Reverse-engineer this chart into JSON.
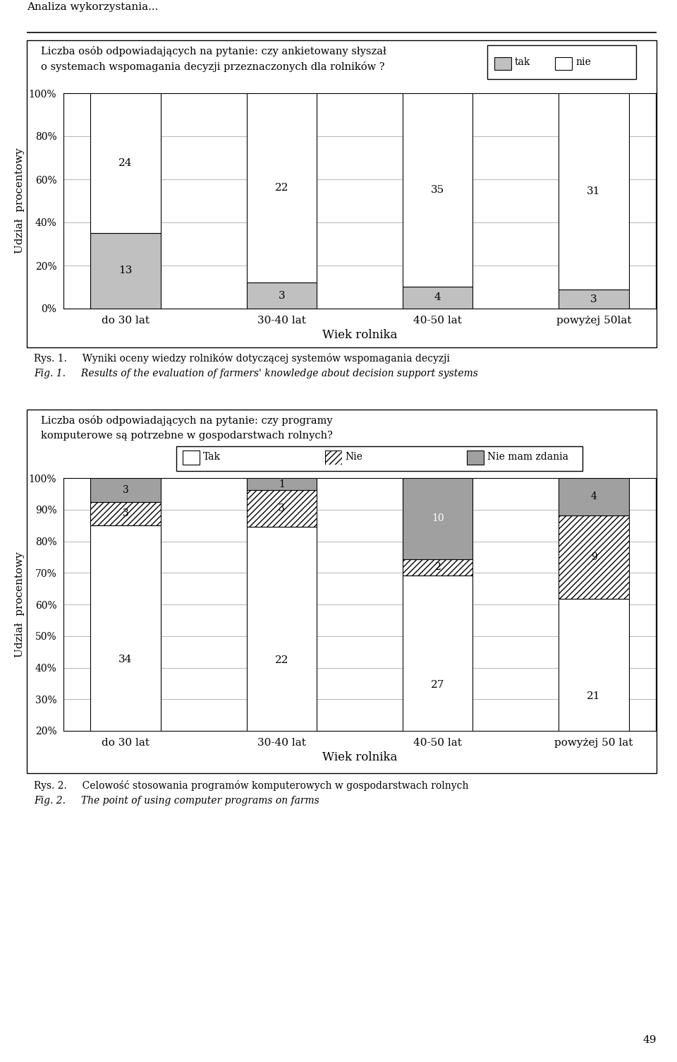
{
  "page_header": "Analiza wykorzystania...",
  "chart1": {
    "title_line1": "Liczba osób odpowiadających na pytanie: czy ankietowany słyszał",
    "title_line2": "o systemach wspomagania decyzji przeznaczonych dla rolników ?",
    "categories": [
      "do 30 lat",
      "30-40 lat",
      "40-50 lat",
      "powyżej 50lat"
    ],
    "tak": [
      13,
      3,
      4,
      3
    ],
    "nie": [
      24,
      22,
      35,
      31
    ],
    "ylabel": "Udział  procentowy",
    "xlabel": "Wiek rolnika",
    "legend_tak": "tak",
    "legend_nie": "nie",
    "color_tak": "#c0c0c0",
    "color_nie": "#ffffff",
    "yticks": [
      0,
      20,
      40,
      60,
      80,
      100
    ],
    "ytick_labels": [
      "0%",
      "20%",
      "40%",
      "60%",
      "80%",
      "100%"
    ]
  },
  "caption1_pl": "Rys. 1.     Wyniki oceny wiedzy rolników dotyczącej systemów wspomagania decyzji",
  "caption1_en": "Fig. 1.     Results of the evaluation of farmers' knowledge about decision support systems",
  "chart2": {
    "title_line1": "Liczba osób odpowiadających na pytanie: czy programy",
    "title_line2": "komputerowe są potrzebne w gospodarstwach rolnych?",
    "categories": [
      "do 30 lat",
      "30-40 lat",
      "40-50 lat",
      "powyżej 50 lat"
    ],
    "tak": [
      34,
      22,
      27,
      21
    ],
    "nie": [
      3,
      3,
      2,
      9
    ],
    "nie_mam": [
      3,
      1,
      10,
      4
    ],
    "ylabel": "Udział  procentowy",
    "xlabel": "Wiek rolnika",
    "legend_tak": "Tak",
    "legend_nie": "Nie",
    "legend_nie_mam": "Nie mam zdania",
    "color_tak": "#ffffff",
    "color_nie_mam": "#a0a0a0",
    "yticks": [
      20,
      30,
      40,
      50,
      60,
      70,
      80,
      90,
      100
    ],
    "ytick_labels": [
      "20%",
      "30%",
      "40%",
      "50%",
      "60%",
      "70%",
      "80%",
      "90%",
      "100%"
    ]
  },
  "caption2_pl": "Rys. 2.     Celowość stosowania programów komputerowych w gospodarstwach rolnych",
  "caption2_en": "Fig. 2.     The point of using computer programs on farms",
  "page_number": "49",
  "background_color": "#ffffff"
}
